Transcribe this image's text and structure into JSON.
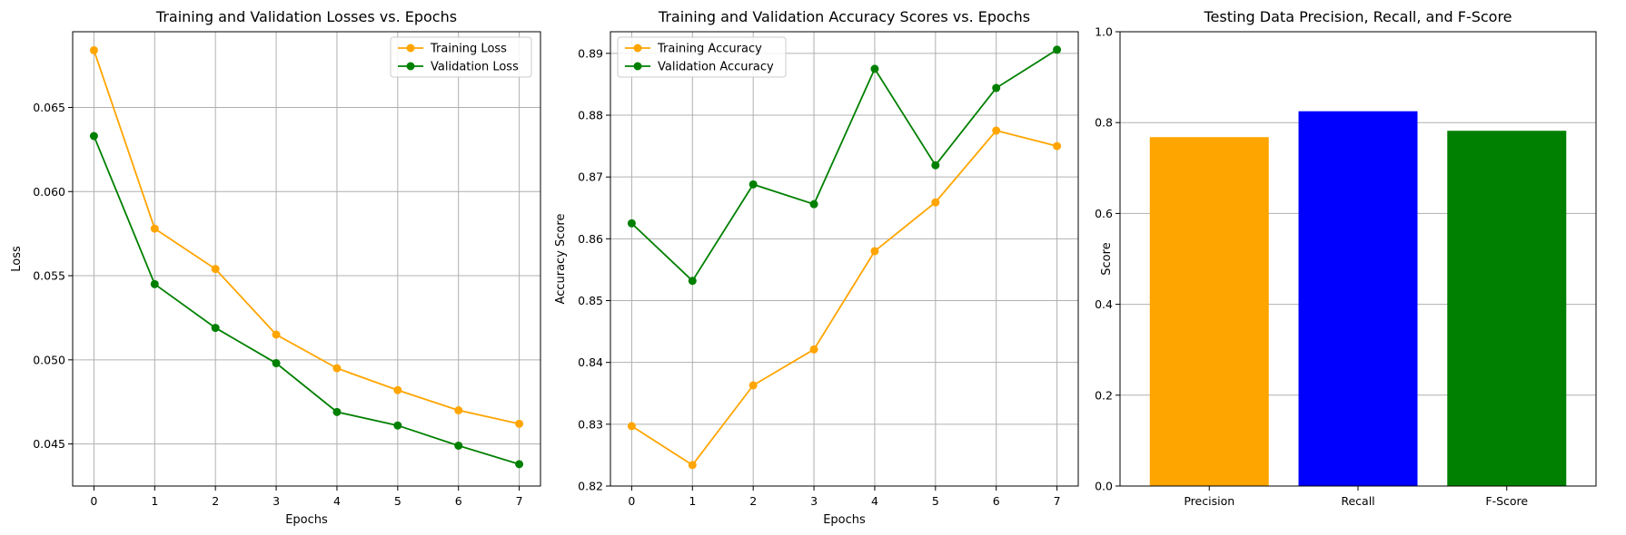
{
  "chart_data": [
    {
      "type": "line",
      "title": "Training and Validation Losses vs. Epochs",
      "xlabel": "Epochs",
      "ylabel": "Loss",
      "x": [
        0,
        1,
        2,
        3,
        4,
        5,
        6,
        7
      ],
      "xticks": [
        "0",
        "1",
        "2",
        "3",
        "4",
        "5",
        "6",
        "7"
      ],
      "xlim": [
        -0.35,
        7.35
      ],
      "ylim": [
        0.0425,
        0.0695
      ],
      "yticks": [
        "0.045",
        "0.050",
        "0.055",
        "0.060",
        "0.065"
      ],
      "grid": true,
      "legend_position": "top-right",
      "series": [
        {
          "name": "Training Loss",
          "color": "#ffa500",
          "values": [
            0.0684,
            0.0578,
            0.0554,
            0.0515,
            0.0495,
            0.0482,
            0.047,
            0.0462
          ]
        },
        {
          "name": "Validation Loss",
          "color": "#008000",
          "values": [
            0.0633,
            0.0545,
            0.0519,
            0.0498,
            0.0469,
            0.0461,
            0.0449,
            0.0438
          ]
        }
      ]
    },
    {
      "type": "line",
      "title": "Training and Validation Accuracy Scores vs. Epochs",
      "xlabel": "Epochs",
      "ylabel": "Accuracy Score",
      "x": [
        0,
        1,
        2,
        3,
        4,
        5,
        6,
        7
      ],
      "xticks": [
        "0",
        "1",
        "2",
        "3",
        "4",
        "5",
        "6",
        "7"
      ],
      "xlim": [
        -0.35,
        7.35
      ],
      "ylim": [
        0.82,
        0.8935
      ],
      "yticks": [
        "0.82",
        "0.83",
        "0.84",
        "0.85",
        "0.86",
        "0.87",
        "0.88",
        "0.89"
      ],
      "grid": true,
      "legend_position": "top-left",
      "series": [
        {
          "name": "Training Accuracy",
          "color": "#ffa500",
          "values": [
            0.8297,
            0.8234,
            0.8363,
            0.8421,
            0.858,
            0.8659,
            0.8775,
            0.875
          ]
        },
        {
          "name": "Validation Accuracy",
          "color": "#008000",
          "values": [
            0.8625,
            0.8532,
            0.8688,
            0.8656,
            0.8875,
            0.8719,
            0.8844,
            0.8906
          ]
        }
      ]
    },
    {
      "type": "bar",
      "title": "Testing Data Precision, Recall, and F-Score",
      "xlabel": "",
      "ylabel": "Score",
      "categories": [
        "Precision",
        "Recall",
        "F-Score"
      ],
      "values": [
        0.768,
        0.825,
        0.782
      ],
      "colors": [
        "#ffa500",
        "#0000ff",
        "#008000"
      ],
      "ylim": [
        0,
        1.0
      ],
      "yticks": [
        "0.0",
        "0.2",
        "0.4",
        "0.6",
        "0.8",
        "1.0"
      ],
      "grid": true
    }
  ]
}
